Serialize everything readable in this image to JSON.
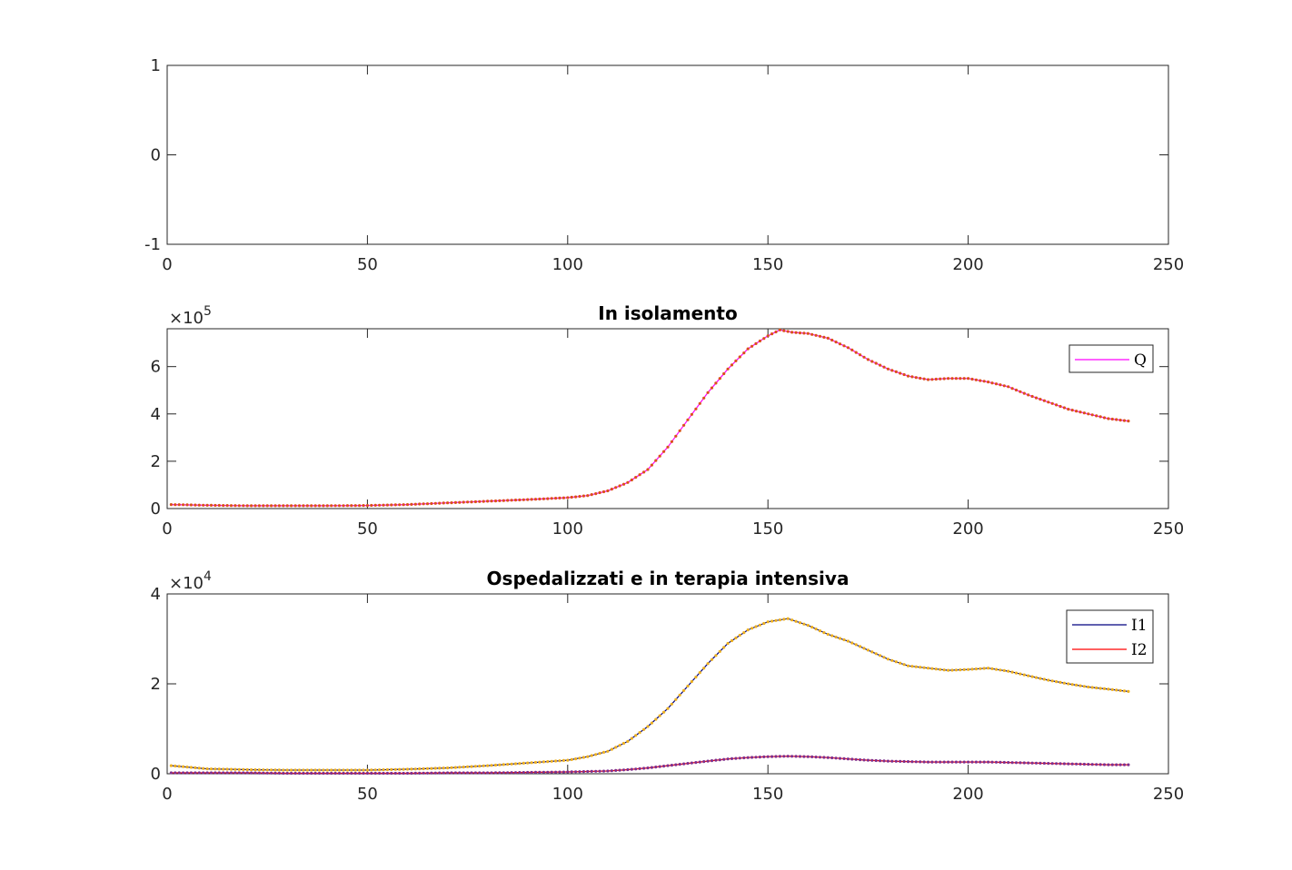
{
  "chart_data": [
    {
      "type": "line",
      "title": "",
      "xlim": [
        0,
        250
      ],
      "ylim": [
        -1,
        1
      ],
      "xticks": [
        0,
        50,
        100,
        150,
        200,
        250
      ],
      "xtick_labels": [
        "0",
        "50",
        "100",
        "150",
        "200",
        "250"
      ],
      "yticks": [
        -1,
        0,
        1
      ],
      "ytick_labels": [
        "-1",
        "0",
        "1"
      ],
      "series": []
    },
    {
      "type": "line",
      "title": "In isolamento",
      "y_multiplier": "×10",
      "y_multiplier_exp": "5",
      "xlim": [
        0,
        250
      ],
      "ylim": [
        0,
        7.6
      ],
      "xticks": [
        0,
        50,
        100,
        150,
        200,
        250
      ],
      "xtick_labels": [
        "0",
        "50",
        "100",
        "150",
        "200",
        "250"
      ],
      "yticks": [
        0,
        2,
        4,
        6
      ],
      "ytick_labels": [
        "0",
        "2",
        "4",
        "6"
      ],
      "legend": {
        "placement": "top-right",
        "entries": [
          "Q"
        ]
      },
      "series": [
        {
          "name": "Q",
          "color": "#ff00ff",
          "marker_color": "#d95319",
          "x": [
            1,
            10,
            20,
            30,
            40,
            50,
            60,
            70,
            80,
            90,
            100,
            105,
            110,
            115,
            120,
            125,
            130,
            135,
            140,
            145,
            150,
            153,
            156,
            160,
            165,
            170,
            175,
            180,
            185,
            190,
            195,
            200,
            205,
            210,
            215,
            220,
            225,
            230,
            235,
            240
          ],
          "y": [
            0.17,
            0.14,
            0.12,
            0.12,
            0.12,
            0.13,
            0.17,
            0.24,
            0.31,
            0.38,
            0.46,
            0.55,
            0.75,
            1.1,
            1.65,
            2.6,
            3.75,
            4.9,
            5.9,
            6.75,
            7.3,
            7.55,
            7.45,
            7.4,
            7.2,
            6.8,
            6.3,
            5.9,
            5.6,
            5.45,
            5.5,
            5.5,
            5.35,
            5.15,
            4.8,
            4.5,
            4.2,
            4.0,
            3.8,
            3.7
          ]
        }
      ]
    },
    {
      "type": "line",
      "title": "Ospedalizzati e in terapia intensiva",
      "y_multiplier": "×10",
      "y_multiplier_exp": "4",
      "xlim": [
        0,
        250
      ],
      "ylim": [
        0,
        4
      ],
      "xticks": [
        0,
        50,
        100,
        150,
        200,
        250
      ],
      "xtick_labels": [
        "0",
        "50",
        "100",
        "150",
        "200",
        "250"
      ],
      "yticks": [
        0,
        2,
        4
      ],
      "ytick_labels": [
        "0",
        "2",
        "4"
      ],
      "legend": {
        "placement": "top-right",
        "entries": [
          "I1",
          "I2"
        ]
      },
      "series": [
        {
          "name": "I1",
          "color": "#000080",
          "marker_color": "#edb120",
          "x": [
            1,
            10,
            20,
            30,
            40,
            50,
            60,
            70,
            80,
            90,
            100,
            105,
            110,
            115,
            120,
            125,
            130,
            135,
            140,
            145,
            150,
            155,
            160,
            165,
            170,
            175,
            180,
            185,
            190,
            195,
            200,
            205,
            210,
            215,
            220,
            225,
            230,
            235,
            240
          ],
          "y": [
            0.18,
            0.11,
            0.09,
            0.08,
            0.08,
            0.08,
            0.1,
            0.13,
            0.18,
            0.24,
            0.3,
            0.38,
            0.5,
            0.72,
            1.05,
            1.45,
            1.95,
            2.45,
            2.9,
            3.2,
            3.38,
            3.45,
            3.3,
            3.1,
            2.95,
            2.75,
            2.55,
            2.4,
            2.35,
            2.3,
            2.32,
            2.35,
            2.28,
            2.18,
            2.08,
            2.0,
            1.93,
            1.88,
            1.83
          ]
        },
        {
          "name": "I2",
          "color": "#ff0000",
          "marker_color": "#7e2f8e",
          "x": [
            1,
            10,
            20,
            30,
            40,
            50,
            60,
            70,
            80,
            90,
            100,
            105,
            110,
            115,
            120,
            125,
            130,
            135,
            140,
            145,
            150,
            155,
            160,
            165,
            170,
            175,
            180,
            185,
            190,
            195,
            200,
            205,
            210,
            215,
            220,
            225,
            230,
            235,
            240
          ],
          "y": [
            0.02,
            0.02,
            0.02,
            0.01,
            0.01,
            0.01,
            0.01,
            0.02,
            0.02,
            0.03,
            0.04,
            0.05,
            0.06,
            0.09,
            0.13,
            0.18,
            0.23,
            0.28,
            0.33,
            0.36,
            0.38,
            0.39,
            0.38,
            0.36,
            0.33,
            0.3,
            0.28,
            0.27,
            0.26,
            0.26,
            0.26,
            0.26,
            0.25,
            0.24,
            0.23,
            0.22,
            0.21,
            0.2,
            0.2
          ]
        }
      ]
    }
  ]
}
